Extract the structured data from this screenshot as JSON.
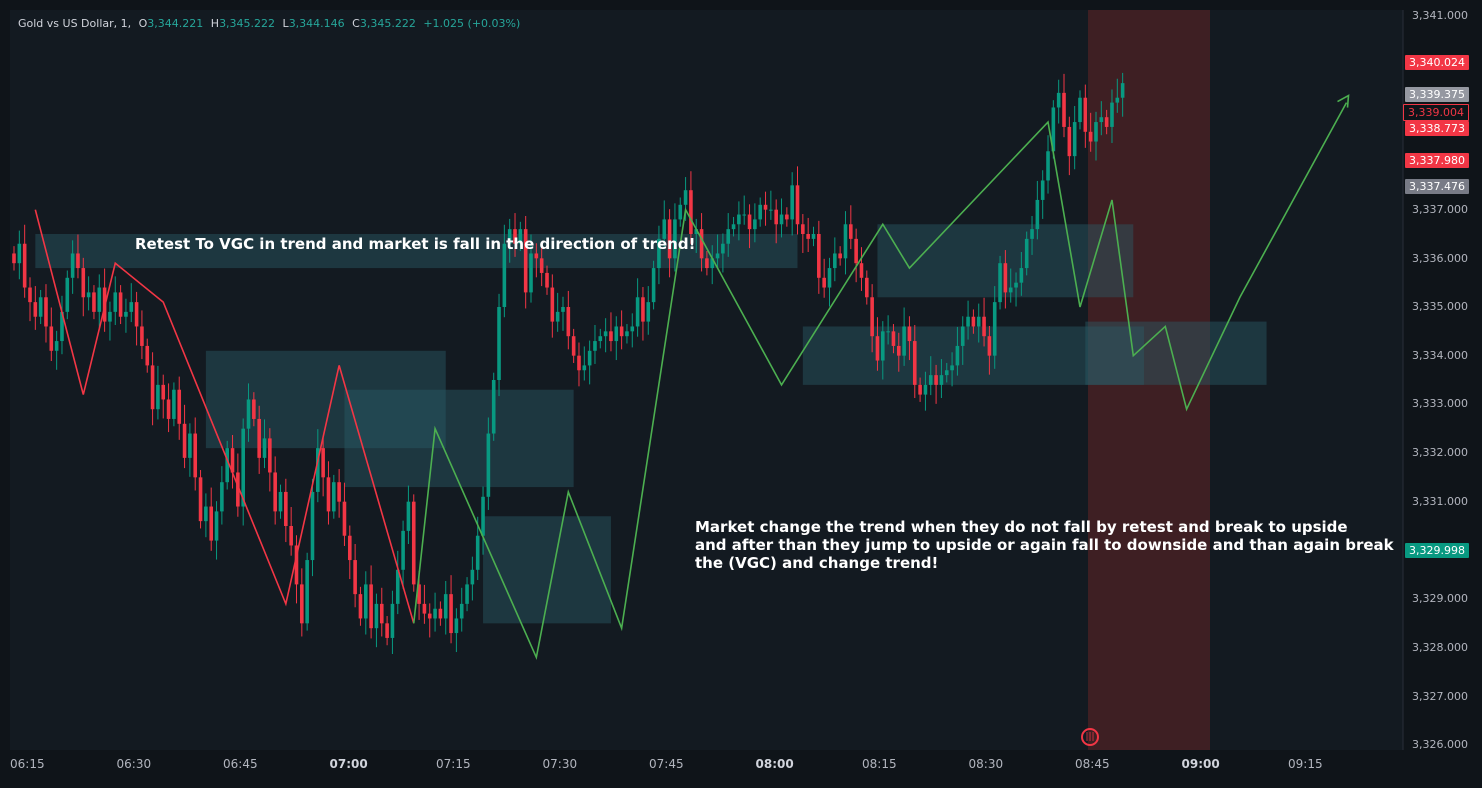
{
  "header": {
    "symbol": "Gold vs US Dollar, 1,",
    "open_label": "O",
    "open": "3,344.221",
    "high_label": "H",
    "high": "3,345.222",
    "low_label": "L",
    "low": "3,344.146",
    "close_label": "C",
    "close": "3,345.222",
    "change": "+1.025 (+0.03%)"
  },
  "annotations": {
    "note1": "Retest To VGC in trend and market is fall in the direction of trend!",
    "note2_l1": "Market change the trend when they do not fall by retest and break to upside",
    "note2_l2": "and after than they jump to upside or again fall to downside and than again break",
    "note2_l3": "the (VGC) and change trend!"
  },
  "price_tags": [
    {
      "value": "3,340.024",
      "color": "#f23645",
      "text_color": "#ffffff"
    },
    {
      "value": "3,339.375",
      "color": "#9598a1",
      "text_color": "#ffffff"
    },
    {
      "value": "3,339.004",
      "color": "#0f1419",
      "text_color": "#f23645"
    },
    {
      "value": "3,338.773",
      "color": "#f23645",
      "text_color": "#ffffff"
    },
    {
      "value": "3,337.980",
      "color": "#f23645",
      "text_color": "#ffffff"
    },
    {
      "value": "3,337.476",
      "color": "#787b86",
      "text_color": "#ffffff"
    },
    {
      "value": "3,329.998",
      "color": "#089981",
      "text_color": "#ffffff"
    }
  ],
  "y_axis": [
    "3,341.000",
    "3,337.000",
    "3,336.000",
    "3,335.000",
    "3,334.000",
    "3,333.000",
    "3,332.000",
    "3,331.000",
    "3,329.000",
    "3,328.000",
    "3,327.000",
    "3,326.000"
  ],
  "x_axis": [
    {
      "label": "06:15",
      "bold": false
    },
    {
      "label": "06:30",
      "bold": false
    },
    {
      "label": "06:45",
      "bold": false
    },
    {
      "label": "07:00",
      "bold": true
    },
    {
      "label": "07:15",
      "bold": false
    },
    {
      "label": "07:30",
      "bold": false
    },
    {
      "label": "07:45",
      "bold": false
    },
    {
      "label": "08:00",
      "bold": true
    },
    {
      "label": "08:15",
      "bold": false
    },
    {
      "label": "08:30",
      "bold": false
    },
    {
      "label": "08:45",
      "bold": false
    },
    {
      "label": "09:00",
      "bold": true
    },
    {
      "label": "09:15",
      "bold": false
    }
  ],
  "colors": {
    "up": "#089981",
    "down": "#f23645",
    "downtrend_line": "#f23645",
    "uptrend_line": "#4caf50",
    "zone": "#2a5a66",
    "session": "#5c2325"
  },
  "chart_data": {
    "type": "candlestick",
    "symbol": "Gold vs US Dollar",
    "interval": "1",
    "ylim": [
      3326,
      3341
    ],
    "start_time": "06:15",
    "closes": [
      3335.9,
      3336.3,
      3335.4,
      3335.1,
      3334.8,
      3335.2,
      3334.6,
      3334.1,
      3334.3,
      3334.9,
      3335.6,
      3336.1,
      3335.8,
      3335.2,
      3335.3,
      3334.9,
      3335.4,
      3334.7,
      3334.9,
      3335.3,
      3334.8,
      3334.9,
      3335.1,
      3334.6,
      3334.2,
      3333.8,
      3332.9,
      3333.4,
      3333.1,
      3332.7,
      3333.3,
      3332.6,
      3331.9,
      3332.4,
      3331.5,
      3330.6,
      3330.9,
      3330.2,
      3330.8,
      3331.4,
      3332.1,
      3331.6,
      3330.9,
      3332.5,
      3333.1,
      3332.7,
      3331.9,
      3332.3,
      3331.6,
      3330.8,
      3331.2,
      3330.5,
      3330.1,
      3329.3,
      3328.5,
      3329.8,
      3331.2,
      3332.1,
      3331.5,
      3330.8,
      3331.4,
      3331.0,
      3330.3,
      3329.8,
      3329.1,
      3328.6,
      3329.3,
      3328.4,
      3328.9,
      3328.5,
      3328.2,
      3328.9,
      3329.6,
      3330.4,
      3331.0,
      3329.3,
      3328.9,
      3328.7,
      3328.6,
      3328.8,
      3328.6,
      3329.1,
      3328.3,
      3328.6,
      3328.9,
      3329.3,
      3329.6,
      3330.3,
      3331.1,
      3332.4,
      3333.5,
      3335.0,
      3336.3,
      3336.6,
      3336.3,
      3336.6,
      3335.3,
      3336.1,
      3336.0,
      3335.7,
      3335.4,
      3334.7,
      3334.9,
      3335.0,
      3334.4,
      3334.0,
      3333.7,
      3333.8,
      3334.1,
      3334.3,
      3334.4,
      3334.5,
      3334.3,
      3334.6,
      3334.4,
      3334.5,
      3334.6,
      3335.2,
      3334.7,
      3335.1,
      3335.8,
      3336.4,
      3336.8,
      3336.0,
      3336.8,
      3337.1,
      3337.4,
      3336.5,
      3336.6,
      3336.0,
      3335.8,
      3336.0,
      3336.1,
      3336.3,
      3336.6,
      3336.7,
      3336.9,
      3336.9,
      3336.6,
      3336.8,
      3337.1,
      3337.0,
      3337.0,
      3336.7,
      3336.9,
      3336.8,
      3337.5,
      3336.7,
      3336.5,
      3336.4,
      3336.5,
      3335.6,
      3335.4,
      3335.8,
      3336.1,
      3336.0,
      3336.7,
      3336.4,
      3335.9,
      3335.6,
      3335.2,
      3334.4,
      3333.9,
      3334.5,
      3334.5,
      3334.2,
      3334.0,
      3334.6,
      3334.3,
      3333.4,
      3333.2,
      3333.4,
      3333.6,
      3333.4,
      3333.6,
      3333.7,
      3333.8,
      3334.2,
      3334.6,
      3334.8,
      3334.6,
      3334.8,
      3334.4,
      3334.0,
      3335.1,
      3335.9,
      3335.3,
      3335.4,
      3335.5,
      3335.8,
      3336.4,
      3336.6,
      3337.2,
      3337.6,
      3338.2,
      3339.1,
      3339.4,
      3338.7,
      3338.1,
      3338.8,
      3339.3,
      3338.6,
      3338.4,
      3338.8,
      3338.9,
      3338.7,
      3339.2,
      3339.3,
      3339.6
    ]
  }
}
